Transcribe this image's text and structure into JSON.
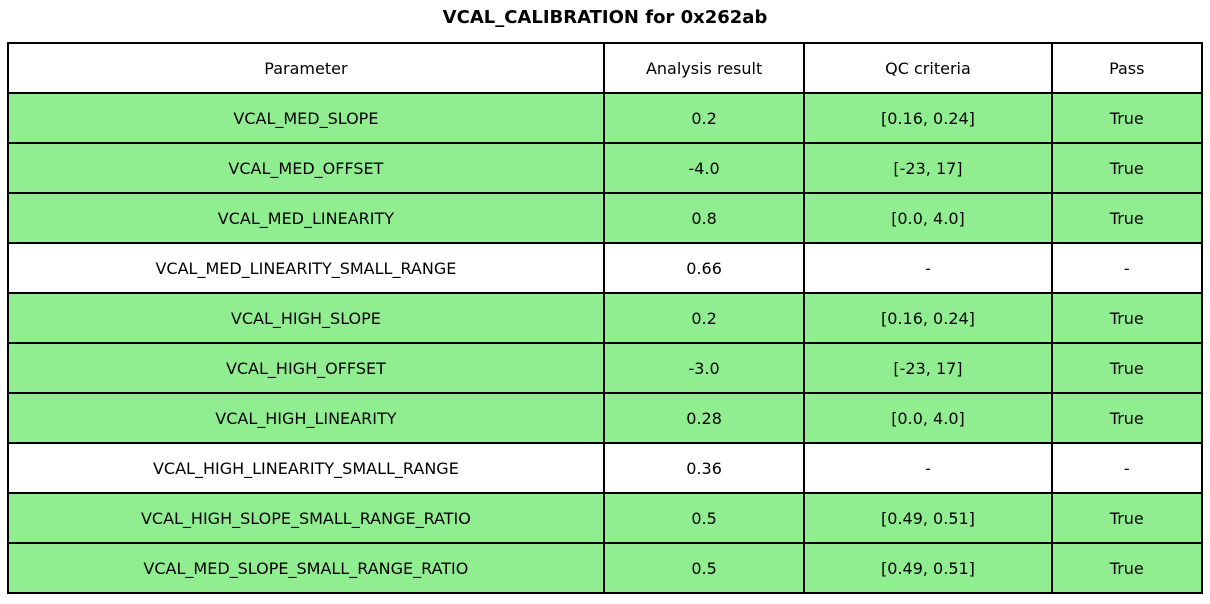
{
  "figure": {
    "title": "VCAL_CALIBRATION for 0x262ab"
  },
  "colors": {
    "pass_row_green": "#90EE90",
    "neutral_row_white": "#ffffff",
    "border_black": "#000000",
    "text_black": "#000000"
  },
  "chart_data": {
    "type": "table",
    "title": "VCAL_CALIBRATION for 0x262ab",
    "columns": [
      "Parameter",
      "Analysis result",
      "QC criteria",
      "Pass"
    ],
    "rows": [
      [
        "VCAL_MED_SLOPE",
        "0.2",
        "[0.16, 0.24]",
        "True"
      ],
      [
        "VCAL_MED_OFFSET",
        "-4.0",
        "[-23, 17]",
        "True"
      ],
      [
        "VCAL_MED_LINEARITY",
        "0.8",
        "[0.0, 4.0]",
        "True"
      ],
      [
        "VCAL_MED_LINEARITY_SMALL_RANGE",
        "0.66",
        "-",
        "-"
      ],
      [
        "VCAL_HIGH_SLOPE",
        "0.2",
        "[0.16, 0.24]",
        "True"
      ],
      [
        "VCAL_HIGH_OFFSET",
        "-3.0",
        "[-23, 17]",
        "True"
      ],
      [
        "VCAL_HIGH_LINEARITY",
        "0.28",
        "[0.0, 4.0]",
        "True"
      ],
      [
        "VCAL_HIGH_LINEARITY_SMALL_RANGE",
        "0.36",
        "-",
        "-"
      ],
      [
        "VCAL_HIGH_SLOPE_SMALL_RANGE_RATIO",
        "0.5",
        "[0.49, 0.51]",
        "True"
      ],
      [
        "VCAL_MED_SLOPE_SMALL_RANGE_RATIO",
        "0.5",
        "[0.49, 0.51]",
        "True"
      ]
    ],
    "row_highlighted": [
      true,
      true,
      true,
      false,
      true,
      true,
      true,
      false,
      true,
      true
    ],
    "layout_hints": {
      "highlight_color": "#90EE90",
      "header_background": "#ffffff",
      "grid": true,
      "title_position": "top-center"
    }
  }
}
